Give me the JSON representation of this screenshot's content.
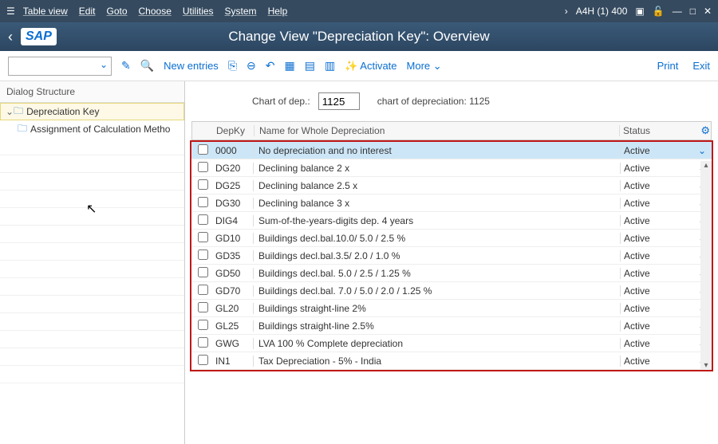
{
  "menubar": {
    "items": [
      "Table view",
      "Edit",
      "Goto",
      "Choose",
      "Utilities",
      "System",
      "Help"
    ],
    "system_label": "A4H (1) 400"
  },
  "titlebar": {
    "logo": "SAP",
    "title": "Change View \"Depreciation Key\": Overview"
  },
  "toolbar": {
    "new_entries": "New entries",
    "activate": "Activate",
    "more": "More",
    "print": "Print",
    "exit": "Exit"
  },
  "sidebar": {
    "header": "Dialog Structure",
    "nodes": [
      {
        "label": "Depreciation Key",
        "selected": true,
        "level": 0
      },
      {
        "label": "Assignment of Calculation Metho",
        "selected": false,
        "level": 1
      }
    ]
  },
  "main": {
    "chart_label": "Chart of dep.:",
    "chart_value": "1125",
    "chart_desc": "chart of depreciation: 1125",
    "columns": {
      "key": "DepKy",
      "name": "Name for Whole Depreciation",
      "status": "Status"
    },
    "rows": [
      {
        "key": "0000",
        "name": "No depreciation and no interest",
        "status": "Active",
        "selected": true
      },
      {
        "key": "DG20",
        "name": "Declining balance 2 x",
        "status": "Active",
        "selected": false
      },
      {
        "key": "DG25",
        "name": "Declining balance 2.5 x",
        "status": "Active",
        "selected": false
      },
      {
        "key": "DG30",
        "name": "Declining balance 3 x",
        "status": "Active",
        "selected": false
      },
      {
        "key": "DIG4",
        "name": "Sum-of-the-years-digits dep. 4 years",
        "status": "Active",
        "selected": false
      },
      {
        "key": "GD10",
        "name": "Buildings decl.bal.10.0/ 5.0 / 2.5 %",
        "status": "Active",
        "selected": false
      },
      {
        "key": "GD35",
        "name": "Buildings decl.bal.3.5/ 2.0 / 1.0  %",
        "status": "Active",
        "selected": false
      },
      {
        "key": "GD50",
        "name": "Buildings decl.bal. 5.0 / 2.5 / 1.25 %",
        "status": "Active",
        "selected": false
      },
      {
        "key": "GD70",
        "name": "Buildings decl.bal. 7.0 / 5.0 / 2.0 / 1.25 %",
        "status": "Active",
        "selected": false
      },
      {
        "key": "GL20",
        "name": "Buildings straight-line 2%",
        "status": "Active",
        "selected": false
      },
      {
        "key": "GL25",
        "name": "Buildings straight-line 2.5%",
        "status": "Active",
        "selected": false
      },
      {
        "key": "GWG",
        "name": "LVA 100 % Complete depreciation",
        "status": "Active",
        "selected": false
      },
      {
        "key": "IN1",
        "name": "Tax Depreciation - 5% - India",
        "status": "Active",
        "selected": false
      }
    ]
  },
  "colors": {
    "menubar_bg": "#354a5f",
    "accent": "#0a6ed1",
    "highlight_row": "#cde6f7",
    "tree_sel": "#fef9e6",
    "red_border": "#c01818"
  }
}
